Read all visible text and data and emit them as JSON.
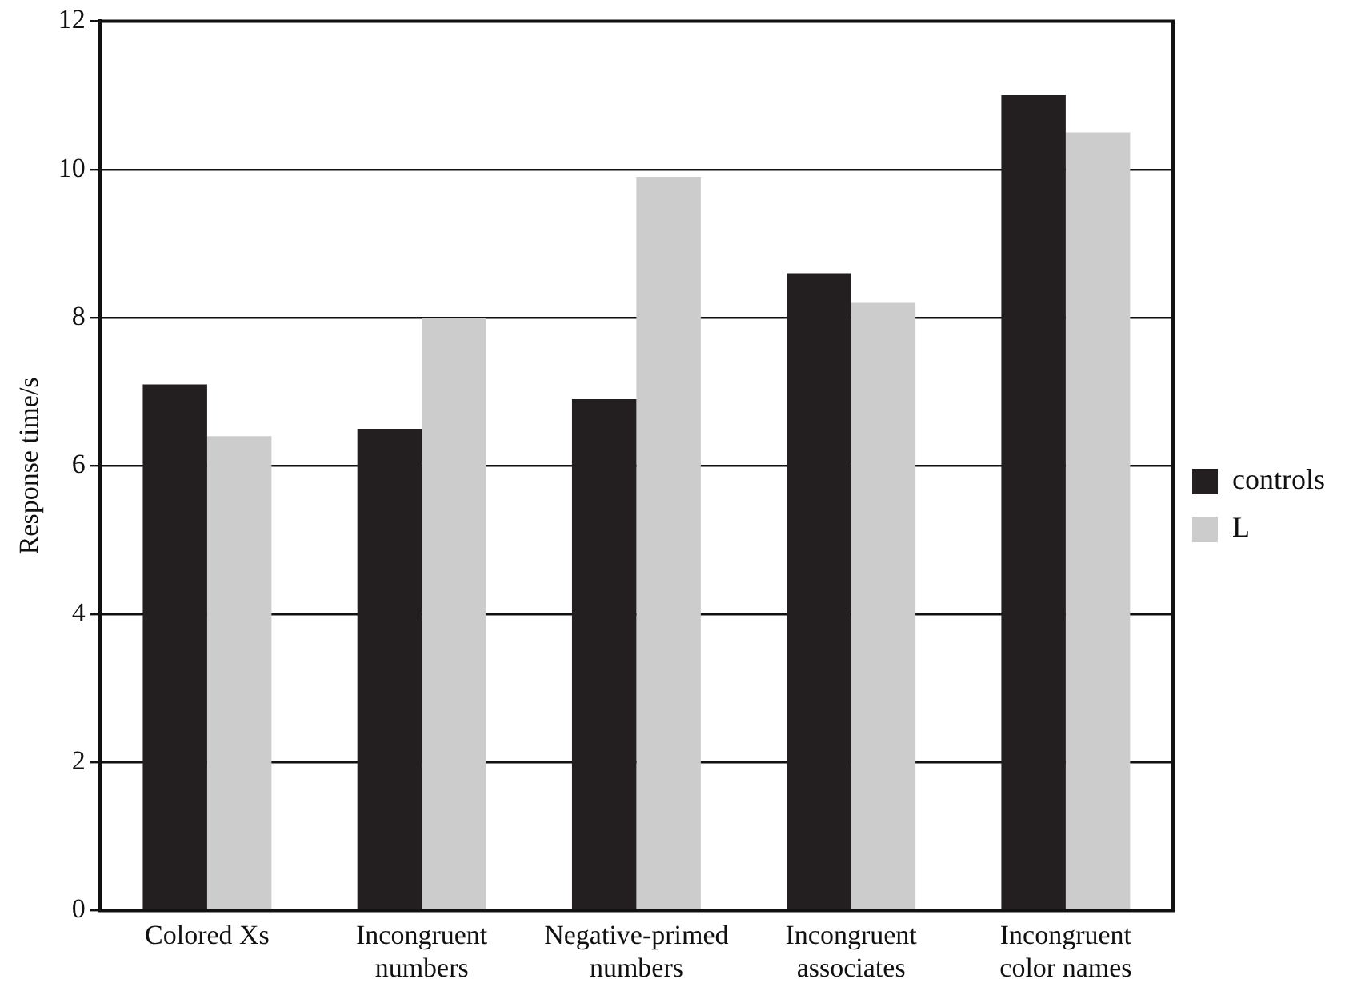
{
  "chart_data": {
    "type": "bar",
    "ylabel": "Response time/s",
    "categories": [
      "Colored Xs",
      "Incongruent\nnumbers",
      "Negative-primed\nnumbers",
      "Incongruent\nassociates",
      "Incongruent\ncolor names"
    ],
    "series": [
      {
        "name": "controls",
        "color": "#231f20",
        "values": [
          7.1,
          6.5,
          6.9,
          8.6,
          11.0
        ]
      },
      {
        "name": "L",
        "color": "#cccccc",
        "values": [
          6.4,
          8.0,
          9.9,
          8.2,
          10.5
        ]
      }
    ],
    "ylim": [
      0,
      12
    ],
    "yticks": [
      0,
      2,
      4,
      6,
      8,
      10,
      12
    ],
    "grid": "y",
    "legend": "right"
  }
}
